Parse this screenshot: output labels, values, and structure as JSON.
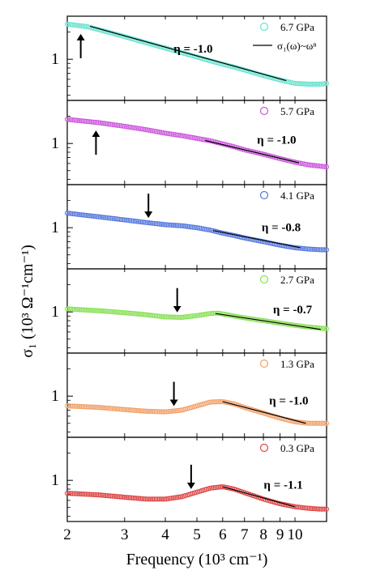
{
  "chart_data": {
    "type": "scatter",
    "x_axis": {
      "label": "Frequency (10³ cm⁻¹)",
      "scale": "log",
      "range": [
        2,
        12.5
      ],
      "tick_labels": [
        "2",
        "3",
        "4",
        "5",
        "6",
        "7",
        "8",
        "9",
        "10"
      ],
      "tick_values": [
        2,
        3,
        4,
        5,
        6,
        7,
        8,
        9,
        10
      ]
    },
    "y_axis": {
      "label": "σ₁ (10³ Ω⁻¹cm⁻¹)",
      "scale": "log",
      "range": [
        0.35,
        3.0
      ],
      "tick_label": "1",
      "tick_value": 1
    },
    "fit_legend": "σ₁(ω)~ωⁿ",
    "panels": [
      {
        "pressure": "6.7 GPa",
        "color": "#66e3cf",
        "eta": "η = -1.0",
        "x": [
          2.0,
          2.3,
          2.6,
          3.0,
          3.5,
          4.0,
          4.5,
          5.0,
          5.5,
          6.0,
          6.5,
          7.0,
          8.0,
          9.0,
          10.0,
          11.0,
          12.0,
          12.5
        ],
        "y": [
          2.45,
          2.3,
          2.05,
          1.78,
          1.52,
          1.33,
          1.18,
          1.06,
          0.96,
          0.88,
          0.82,
          0.76,
          0.66,
          0.59,
          0.54,
          0.53,
          0.53,
          0.54
        ],
        "fit_x": [
          2.35,
          9.4
        ],
        "fit_y": [
          2.32,
          0.58
        ],
        "arrow_x": 2.2,
        "arrow_dir": "up"
      },
      {
        "pressure": "5.7 GPa",
        "color": "#cc55dd",
        "eta": "η = -1.0",
        "x": [
          2.0,
          2.5,
          3.0,
          3.5,
          4.0,
          4.5,
          5.0,
          5.5,
          6.0,
          6.5,
          7.0,
          8.0,
          9.0,
          10.0,
          11.0,
          12.0,
          12.5
        ],
        "y": [
          1.85,
          1.7,
          1.55,
          1.42,
          1.3,
          1.22,
          1.14,
          1.07,
          0.99,
          0.92,
          0.85,
          0.76,
          0.68,
          0.62,
          0.58,
          0.56,
          0.55
        ],
        "fit_x": [
          5.3,
          10.3
        ],
        "fit_y": [
          1.08,
          0.61
        ],
        "arrow_x": 2.45,
        "arrow_dir": "up"
      },
      {
        "pressure": "4.1 GPa",
        "color": "#5577dd",
        "eta": "η = -0.8",
        "x": [
          2.0,
          2.5,
          3.0,
          3.5,
          4.0,
          4.5,
          5.0,
          5.5,
          6.0,
          6.5,
          7.0,
          8.0,
          9.0,
          10.0,
          11.0,
          12.0,
          12.5
        ],
        "y": [
          1.45,
          1.32,
          1.22,
          1.14,
          1.08,
          1.05,
          1.0,
          0.94,
          0.87,
          0.82,
          0.77,
          0.7,
          0.64,
          0.6,
          0.58,
          0.57,
          0.57
        ],
        "fit_x": [
          5.6,
          10.4
        ],
        "fit_y": [
          0.93,
          0.6
        ],
        "arrow_x": 3.55,
        "arrow_dir": "down"
      },
      {
        "pressure": "2.7 GPa",
        "color": "#88e055",
        "eta": "η = -0.7",
        "x": [
          2.0,
          2.5,
          3.0,
          3.5,
          4.0,
          4.5,
          5.0,
          5.5,
          5.8,
          6.5,
          7.0,
          8.0,
          9.0,
          10.0,
          11.0,
          12.0,
          12.5
        ],
        "y": [
          1.08,
          1.03,
          0.98,
          0.93,
          0.88,
          0.87,
          0.91,
          0.96,
          0.97,
          0.9,
          0.86,
          0.8,
          0.75,
          0.71,
          0.68,
          0.66,
          0.65
        ],
        "fit_x": [
          5.7,
          12.0
        ],
        "fit_y": [
          0.96,
          0.64
        ],
        "arrow_x": 4.35,
        "arrow_dir": "down"
      },
      {
        "pressure": "1.3 GPa",
        "color": "#f2a068",
        "eta": "η = -1.0",
        "x": [
          2.0,
          2.5,
          3.0,
          3.5,
          4.0,
          4.5,
          5.0,
          5.5,
          6.0,
          6.5,
          7.0,
          8.0,
          9.0,
          10.0,
          11.0,
          12.0,
          12.5
        ],
        "y": [
          0.78,
          0.75,
          0.71,
          0.68,
          0.67,
          0.7,
          0.78,
          0.86,
          0.87,
          0.82,
          0.75,
          0.65,
          0.57,
          0.52,
          0.5,
          0.5,
          0.5
        ],
        "fit_x": [
          6.0,
          10.8
        ],
        "fit_y": [
          0.87,
          0.5
        ],
        "arrow_x": 4.25,
        "arrow_dir": "down"
      },
      {
        "pressure": "0.3 GPa",
        "color": "#dd4444",
        "eta": "η = -1.1",
        "x": [
          2.0,
          2.5,
          3.0,
          3.5,
          4.0,
          4.5,
          5.0,
          5.5,
          6.0,
          6.5,
          7.0,
          8.0,
          9.0,
          10.0,
          11.0,
          12.0,
          12.5
        ],
        "y": [
          0.72,
          0.69,
          0.65,
          0.62,
          0.62,
          0.66,
          0.74,
          0.82,
          0.85,
          0.8,
          0.73,
          0.62,
          0.55,
          0.51,
          0.49,
          0.48,
          0.48
        ],
        "fit_x": [
          6.0,
          10.0
        ],
        "fit_y": [
          0.85,
          0.51
        ],
        "arrow_x": 4.8,
        "arrow_dir": "down"
      }
    ]
  }
}
